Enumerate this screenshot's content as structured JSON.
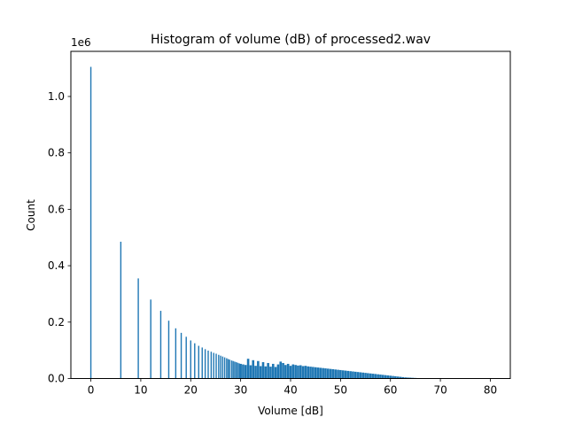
{
  "chart_data": {
    "type": "bar",
    "title": "Histogram of volume (dB) of processed2.wav",
    "xlabel": "Volume [dB]",
    "ylabel": "Count",
    "y_offset_label": "1e6",
    "xlim": [
      -4,
      84
    ],
    "ylim": [
      0,
      1160000
    ],
    "x_ticks": [
      0,
      10,
      20,
      30,
      40,
      50,
      60,
      70,
      80
    ],
    "x_tick_labels": [
      "0",
      "10",
      "20",
      "30",
      "40",
      "50",
      "60",
      "70",
      "80"
    ],
    "y_ticks": [
      0,
      200000,
      400000,
      600000,
      800000,
      1000000
    ],
    "y_tick_labels": [
      "0.0",
      "0.2",
      "0.4",
      "0.6",
      "0.8",
      "1.0"
    ],
    "grid": false,
    "bar_color": "#1f77b4",
    "series": [
      {
        "x": [
          0.0,
          6.0,
          9.5,
          12.0,
          14.0,
          15.6,
          17.0,
          18.1,
          19.1,
          20.0,
          20.8,
          21.6,
          22.3,
          22.9,
          23.5,
          24.1,
          24.6,
          25.1,
          25.6,
          26.0,
          26.4,
          26.8,
          27.2,
          27.5,
          27.8,
          28.2,
          28.5,
          28.8,
          29.1,
          29.4,
          29.7,
          30.0,
          30.5,
          31.0,
          31.5,
          32.0,
          32.5,
          33.0,
          33.5,
          34.0,
          34.5,
          35.0,
          35.5,
          36.0,
          36.5,
          37.0,
          37.5,
          38.0,
          38.5,
          39.0,
          39.5,
          40.0,
          40.5,
          41.0,
          41.5,
          42.0,
          42.5,
          43.0,
          43.5,
          44.0,
          44.5,
          45.0,
          45.5,
          46.0,
          46.5,
          47.0,
          47.5,
          48.0,
          48.5,
          49.0,
          49.5,
          50.0,
          50.5,
          51.0,
          51.5,
          52.0,
          52.5,
          53.0,
          53.5,
          54.0,
          54.5,
          55.0,
          55.5,
          56.0,
          56.5,
          57.0,
          57.5,
          58.0,
          58.5,
          59.0,
          59.5,
          60.0,
          60.5,
          61.0,
          61.5,
          62.0,
          62.5,
          63.0,
          63.5,
          64.0,
          64.5,
          65.0,
          65.5,
          66.0,
          66.5,
          67.0
        ],
        "values": [
          1105000,
          485000,
          355000,
          280000,
          240000,
          205000,
          178000,
          162000,
          148000,
          135000,
          125000,
          116000,
          110000,
          104000,
          99000,
          95000,
          91000,
          88000,
          84000,
          81000,
          78000,
          75000,
          72000,
          69000,
          67000,
          64000,
          62000,
          60000,
          58000,
          56000,
          54000,
          52000,
          50000,
          48000,
          70000,
          47000,
          65000,
          45000,
          62000,
          44000,
          58000,
          43000,
          55000,
          42000,
          52000,
          41000,
          50000,
          60000,
          55000,
          48000,
          52000,
          45000,
          50000,
          48000,
          46000,
          47000,
          44000,
          45000,
          43000,
          42000,
          41000,
          40000,
          39000,
          38000,
          37000,
          36000,
          35000,
          34000,
          33000,
          32000,
          31000,
          30000,
          29000,
          28000,
          27000,
          26000,
          25000,
          24000,
          23000,
          22000,
          21000,
          20000,
          19000,
          18000,
          17000,
          16000,
          15000,
          14000,
          13000,
          12000,
          11000,
          10000,
          9000,
          8000,
          7000,
          6000,
          5000,
          4000,
          3500,
          3000,
          2500,
          2000,
          1500,
          1000,
          600,
          300
        ]
      }
    ]
  }
}
